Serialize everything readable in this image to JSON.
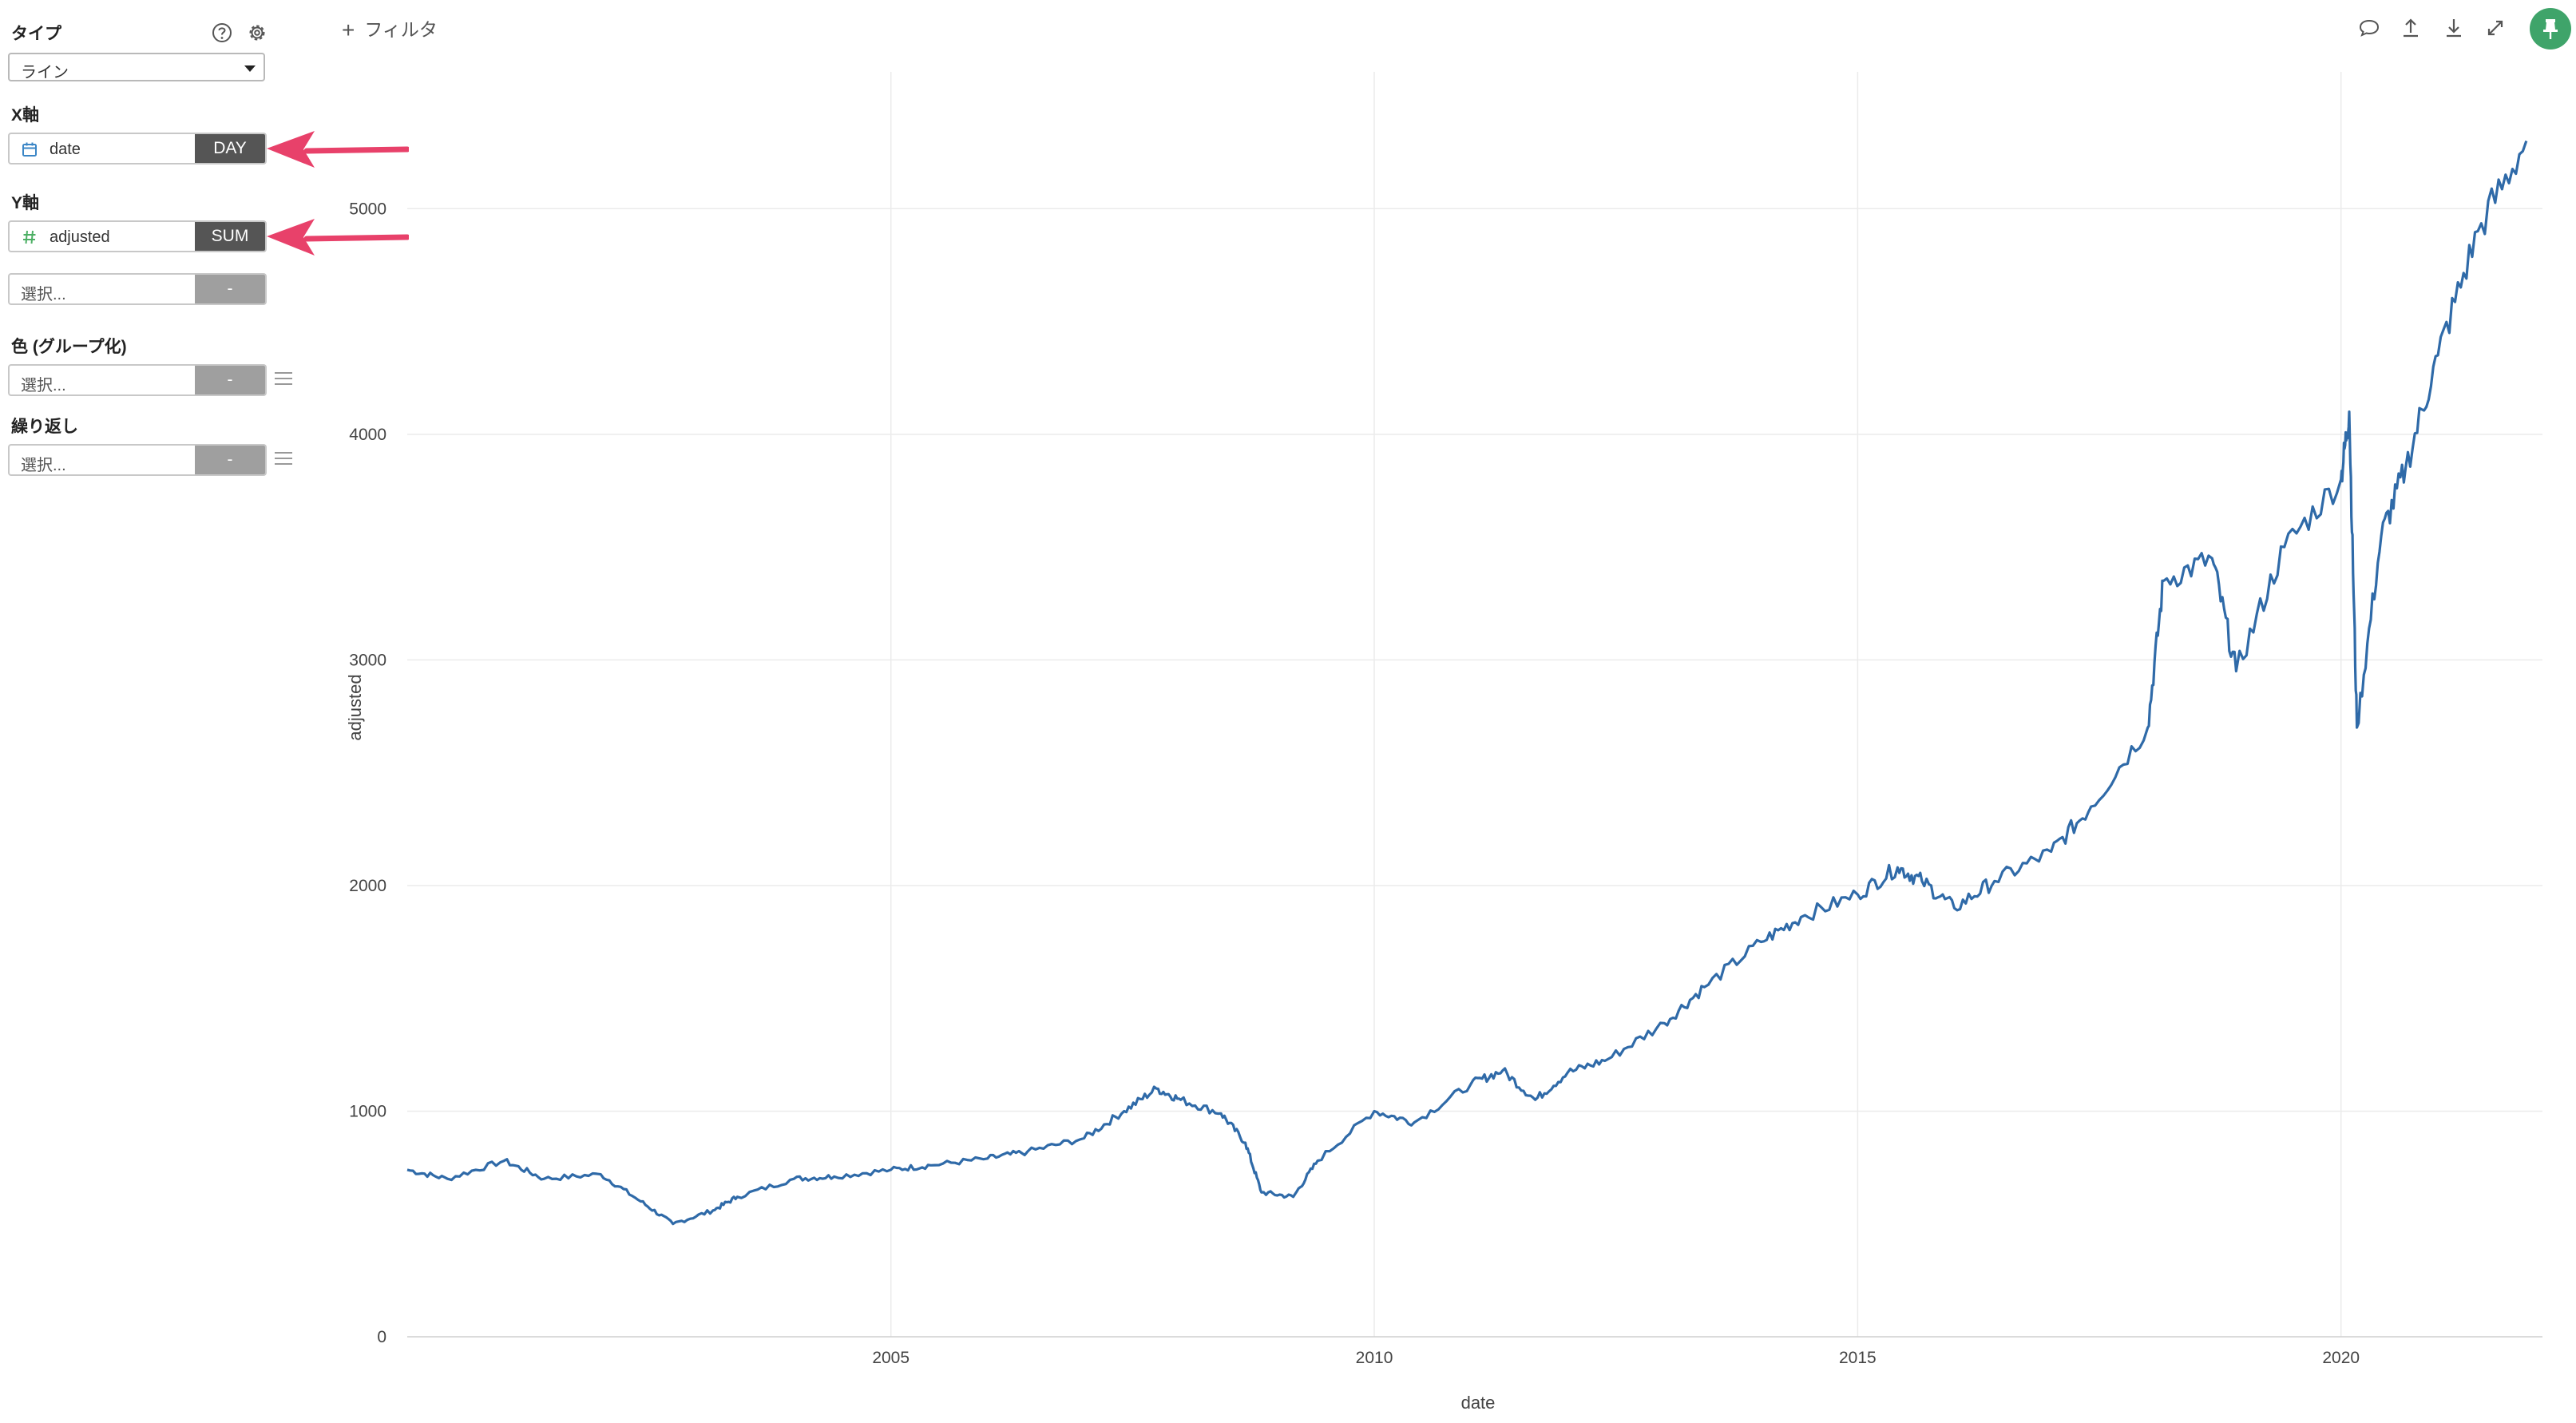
{
  "panel": {
    "type_label": "タイプ",
    "type_value": "ライン",
    "x_axis_label": "X軸",
    "x_field": "date",
    "x_agg": "DAY",
    "y_axis_label": "Y軸",
    "y_field": "adjusted",
    "y_agg": "SUM",
    "y2_placeholder": "選択...",
    "y2_agg": "-",
    "color_label": "色 (グループ化)",
    "color_placeholder": "選択...",
    "color_agg": "-",
    "repeat_label": "繰り返し",
    "repeat_placeholder": "選択...",
    "repeat_agg": "-",
    "icons": [
      "help-icon",
      "gear-icon",
      "calendar-icon",
      "hash-icon",
      "menu-icon"
    ],
    "arrow_color": "#e8416a"
  },
  "toolbar": {
    "filter_label": "フィルタ",
    "icons": [
      "comment-icon",
      "upload-icon",
      "download-icon",
      "expand-icon",
      "pin-icon"
    ],
    "pin_color": "#3fa46a"
  },
  "chart_data": {
    "type": "line",
    "xlabel": "date",
    "ylabel": "adjusted",
    "xlim": [
      "2000-01-01",
      "2022-01-31"
    ],
    "ylim": [
      0,
      5500
    ],
    "x_ticks": [
      "2005",
      "2010",
      "2015",
      "2020"
    ],
    "y_ticks": [
      0,
      1000,
      2000,
      3000,
      4000,
      5000
    ],
    "grid": true,
    "line_color": "#2f6aa8",
    "series": [
      {
        "x": [
          "2000-01",
          "2000-06",
          "2001-01",
          "2001-06",
          "2002-01",
          "2002-06",
          "2002-10",
          "2003-03",
          "2003-06",
          "2004-01",
          "2004-06",
          "2005-01",
          "2005-06",
          "2006-01",
          "2006-06",
          "2007-01",
          "2007-06",
          "2007-10",
          "2008-01",
          "2008-06",
          "2008-09",
          "2008-11",
          "2009-03",
          "2009-06",
          "2010-01",
          "2010-06",
          "2011-01",
          "2011-05",
          "2011-09",
          "2012-01",
          "2012-06",
          "2013-01",
          "2013-06",
          "2014-01",
          "2014-06",
          "2015-01",
          "2015-06",
          "2015-09",
          "2016-01",
          "2016-06",
          "2017-01",
          "2017-06",
          "2018-01",
          "2018-03",
          "2018-09",
          "2018-12",
          "2019-06",
          "2020-01",
          "2020-02",
          "2020-03",
          "2020-06",
          "2020-09",
          "2021-01",
          "2021-06",
          "2021-12"
        ],
        "y": [
          740,
          700,
          780,
          700,
          720,
          600,
          500,
          560,
          620,
          700,
          710,
          740,
          760,
          790,
          820,
          880,
          1000,
          1100,
          1050,
          990,
          860,
          640,
          620,
          780,
          1000,
          950,
          1120,
          1180,
          1050,
          1170,
          1230,
          1390,
          1550,
          1750,
          1860,
          1960,
          2080,
          2020,
          1900,
          2020,
          2150,
          2350,
          2700,
          3350,
          3450,
          2950,
          3500,
          3800,
          4100,
          2700,
          3550,
          3850,
          4350,
          4900,
          5300
        ]
      }
    ]
  }
}
